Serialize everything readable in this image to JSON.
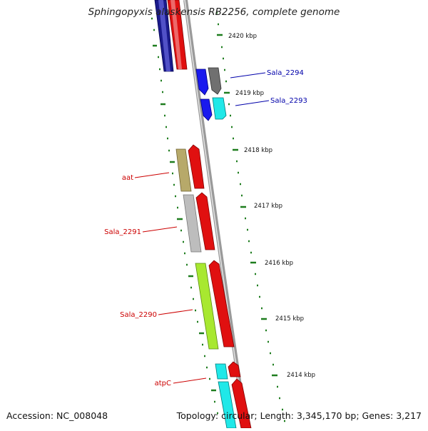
{
  "title": "Sphingopyxis alaskensis RB2256, complete genome",
  "accession": "Accession: NC_008048",
  "topology": "Topology: circular; Length: 3,345,170 bp; Genes: 3,217",
  "colors": {
    "backbone": "#8c8c8c",
    "tick": "#1e7d1e",
    "forward_label": "#0000aa",
    "reverse_label": "#cc0000"
  },
  "kbp_labels": [
    "2420 kbp",
    "2419 kbp",
    "2418 kbp",
    "2417 kbp",
    "2416 kbp",
    "2415 kbp",
    "2414 kbp"
  ],
  "gene_labels": [
    {
      "text": "Sala_2294",
      "strand": "forward"
    },
    {
      "text": "Sala_2293",
      "strand": "forward"
    },
    {
      "text": "aat",
      "strand": "reverse"
    },
    {
      "text": "Sala_2291",
      "strand": "reverse"
    },
    {
      "text": "Sala_2290",
      "strand": "reverse"
    },
    {
      "text": "atpC",
      "strand": "reverse"
    }
  ]
}
